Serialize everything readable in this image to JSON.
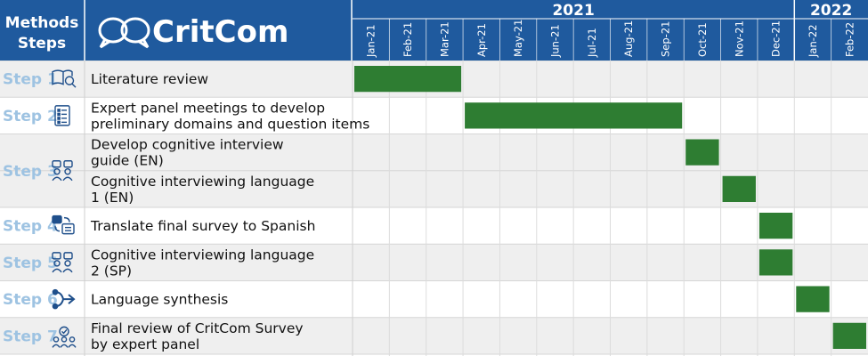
{
  "header": {
    "methods_label": "Methods",
    "steps_label": "Steps",
    "logo_text": "CritCom"
  },
  "colors": {
    "header_bg": "#1f5a9e",
    "bar": "#2e7d32",
    "row_alt": "#efefef",
    "step_text": "#9ec3e2",
    "icon": "#1f4f8b"
  },
  "chart_data": {
    "type": "gantt",
    "year_labels": [
      {
        "label": "2021",
        "start": 0,
        "end": 12
      },
      {
        "label": "2022",
        "start": 12,
        "end": 14
      }
    ],
    "months": [
      "Jan-21",
      "Feb-21",
      "Mar-21",
      "Apr-21",
      "May-21",
      "Jun-21",
      "Jul-21",
      "Aug-21",
      "Sep-21",
      "Oct-21",
      "Nov-21",
      "Dec-21",
      "Jan-22",
      "Feb-22"
    ],
    "steps": [
      {
        "label": "Step 1",
        "icon": "book-search-icon",
        "rows": 1,
        "shaded": true
      },
      {
        "label": "Step 2",
        "icon": "checklist-icon",
        "rows": 1,
        "shaded": false
      },
      {
        "label": "Step 3",
        "icon": "interview-icon",
        "rows": 2,
        "shaded": true
      },
      {
        "label": "Step 4",
        "icon": "translate-icon",
        "rows": 1,
        "shaded": false
      },
      {
        "label": "Step 5",
        "icon": "interview-icon",
        "rows": 1,
        "shaded": true
      },
      {
        "label": "Step 6",
        "icon": "merge-icon",
        "rows": 1,
        "shaded": false
      },
      {
        "label": "Step 7",
        "icon": "team-icon",
        "rows": 1,
        "shaded": true
      }
    ],
    "tasks": [
      {
        "lines": [
          "Literature review"
        ],
        "start": "Jan-21",
        "end": "Mar-21"
      },
      {
        "lines": [
          "Expert panel meetings to develop",
          "preliminary domains and question items"
        ],
        "start": "Apr-21",
        "end": "Sep-21"
      },
      {
        "lines": [
          "Develop cognitive interview",
          "guide (EN)"
        ],
        "start": "Oct-21",
        "end": "Oct-21"
      },
      {
        "lines": [
          "Cognitive interviewing language",
          "1 (EN)"
        ],
        "start": "Nov-21",
        "end": "Nov-21"
      },
      {
        "lines": [
          "Translate final survey to Spanish"
        ],
        "start": "Dec-21",
        "end": "Dec-21"
      },
      {
        "lines": [
          "Cognitive interviewing language",
          "2 (SP)"
        ],
        "start": "Dec-21",
        "end": "Dec-21"
      },
      {
        "lines": [
          "Language synthesis"
        ],
        "start": "Jan-22",
        "end": "Jan-22"
      },
      {
        "lines": [
          "Final review of CritCom Survey",
          "by expert panel"
        ],
        "start": "Feb-22",
        "end": "Feb-22"
      }
    ]
  }
}
